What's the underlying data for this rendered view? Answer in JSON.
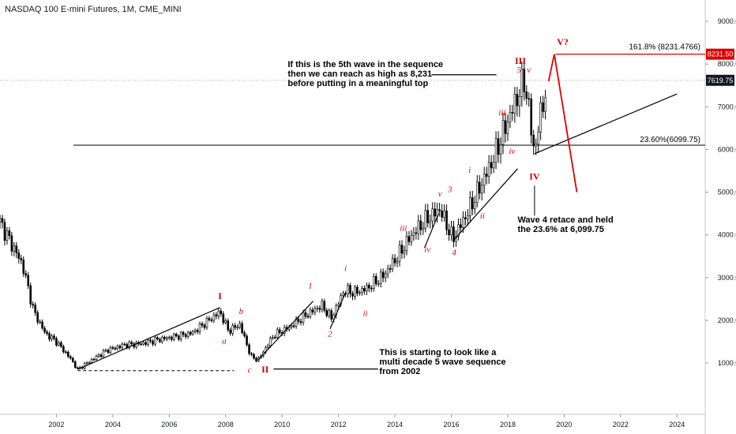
{
  "title": "NASDAQ 100 E-mini Futures, 1M, CME_MINI",
  "chart_data": {
    "type": "candlestick",
    "title": "NASDAQ 100 E-mini Futures, 1M, CME_MINI",
    "x_axis": {
      "type": "year",
      "range": [
        2000.0,
        2025.0
      ],
      "tick_labels": [
        "2002",
        "2004",
        "2006",
        "2008",
        "2010",
        "2012",
        "2014",
        "2016",
        "2018",
        "2020",
        "2022",
        "2024"
      ]
    },
    "y_axis": {
      "range": [
        -200,
        9500
      ],
      "position": "right",
      "tick_labels": [
        "1000.00",
        "2000.00",
        "3000.00",
        "4000.00",
        "5000.00",
        "6000.00",
        "7000.00",
        "8000.00",
        "9000.00"
      ]
    },
    "series": [
      {
        "values": [
          [
            2000.0,
            4300
          ],
          [
            2000.4,
            3800
          ],
          [
            2000.8,
            3300
          ],
          [
            2001.2,
            2200
          ],
          [
            2001.6,
            1700
          ],
          [
            2002.0,
            1500
          ],
          [
            2002.5,
            1100
          ],
          [
            2002.75,
            850
          ],
          [
            2003.2,
            1050
          ],
          [
            2003.8,
            1300
          ],
          [
            2004.4,
            1420
          ],
          [
            2005.0,
            1450
          ],
          [
            2005.6,
            1550
          ],
          [
            2006.2,
            1620
          ],
          [
            2006.8,
            1700
          ],
          [
            2007.3,
            1950
          ],
          [
            2007.8,
            2200
          ],
          [
            2008.1,
            1750
          ],
          [
            2008.5,
            1900
          ],
          [
            2008.9,
            1150
          ],
          [
            2009.15,
            1070
          ],
          [
            2009.7,
            1650
          ],
          [
            2010.3,
            1850
          ],
          [
            2010.8,
            2100
          ],
          [
            2011.4,
            2350
          ],
          [
            2011.75,
            2050
          ],
          [
            2012.2,
            2700
          ],
          [
            2012.6,
            2650
          ],
          [
            2013.0,
            2750
          ],
          [
            2013.6,
            3050
          ],
          [
            2014.1,
            3500
          ],
          [
            2014.6,
            4000
          ],
          [
            2015.1,
            4350
          ],
          [
            2015.6,
            4600
          ],
          [
            2016.05,
            3900
          ],
          [
            2016.6,
            4550
          ],
          [
            2017.0,
            5100
          ],
          [
            2017.5,
            5800
          ],
          [
            2017.9,
            6500
          ],
          [
            2018.2,
            7000
          ],
          [
            2018.6,
            7650
          ],
          [
            2018.95,
            5900
          ],
          [
            2019.2,
            7000
          ],
          [
            2019.45,
            7600
          ]
        ]
      }
    ],
    "horizontal_levels": [
      {
        "value": 8231.4766,
        "label": "161.8% (8231.4766)",
        "color": "#e00000"
      },
      {
        "value": 6099.75,
        "label": "23.60%(6099.75)",
        "color": "#000000"
      }
    ],
    "price_tags": [
      {
        "value": 8231.5,
        "label": "8231.50",
        "color": "#e00000"
      },
      {
        "value": 7619.75,
        "label": "7619.75",
        "color": "#131722"
      }
    ],
    "projection": [
      [
        2018.4,
        8231.5
      ],
      [
        2018.95,
        8231.5
      ]
    ],
    "wave_labels": [
      {
        "text": "I",
        "x": 2007.8,
        "y": 2500,
        "style": "roman"
      },
      {
        "text": "II",
        "x": 2009.4,
        "y": 780,
        "style": "roman"
      },
      {
        "text": "III",
        "x": 2018.45,
        "y": 8000,
        "style": "roman"
      },
      {
        "text": "IV",
        "x": 2018.95,
        "y": 5300,
        "style": "roman"
      },
      {
        "text": "V?",
        "x": 2019.95,
        "y": 8450,
        "style": "roman"
      },
      {
        "text": "a",
        "x": 2007.95,
        "y": 1450,
        "style": "italic"
      },
      {
        "text": "b",
        "x": 2008.55,
        "y": 2150,
        "style": "italic"
      },
      {
        "text": "c",
        "x": 2008.85,
        "y": 780,
        "style": "italic"
      },
      {
        "text": "1",
        "x": 2011.0,
        "y": 2750,
        "style": "italic"
      },
      {
        "text": "2",
        "x": 2011.7,
        "y": 1620,
        "style": "italic"
      },
      {
        "text": "i",
        "x": 2012.25,
        "y": 3150,
        "style": "italic"
      },
      {
        "text": "ii",
        "x": 2012.95,
        "y": 2100,
        "style": "italic"
      },
      {
        "text": "iii",
        "x": 2014.3,
        "y": 4100,
        "style": "italic"
      },
      {
        "text": "iv",
        "x": 2015.15,
        "y": 3600,
        "style": "italic"
      },
      {
        "text": "v",
        "x": 2015.6,
        "y": 4900,
        "style": "italic"
      },
      {
        "text": "3",
        "x": 2015.95,
        "y": 5000,
        "style": "italic"
      },
      {
        "text": "4",
        "x": 2016.1,
        "y": 3520,
        "style": "italic"
      },
      {
        "text": "i",
        "x": 2016.65,
        "y": 5450,
        "style": "italic"
      },
      {
        "text": "ii",
        "x": 2017.1,
        "y": 4380,
        "style": "italic"
      },
      {
        "text": "iii",
        "x": 2017.8,
        "y": 6800,
        "style": "italic"
      },
      {
        "text": "iv",
        "x": 2018.15,
        "y": 5900,
        "style": "italic"
      },
      {
        "text": "5",
        "x": 2018.4,
        "y": 7800,
        "style": "italic"
      },
      {
        "text": "v",
        "x": 2018.75,
        "y": 7800,
        "style": "italic"
      }
    ]
  },
  "annotations": [
    {
      "text": "If this is the 5th wave in the sequence\nthen we can reach as high as 8,231\nbefore putting in a meaningful top",
      "x": 2010.2,
      "y": 8100
    },
    {
      "text": "Wave 4 retace and held\nthe 23.6% at 6,099.75",
      "x": 2018.35,
      "y": 4450
    },
    {
      "text": "This is starting to look like a\nmulti decade 5 wave sequence\nfrom 2002",
      "x": 2013.45,
      "y": 1350
    }
  ]
}
